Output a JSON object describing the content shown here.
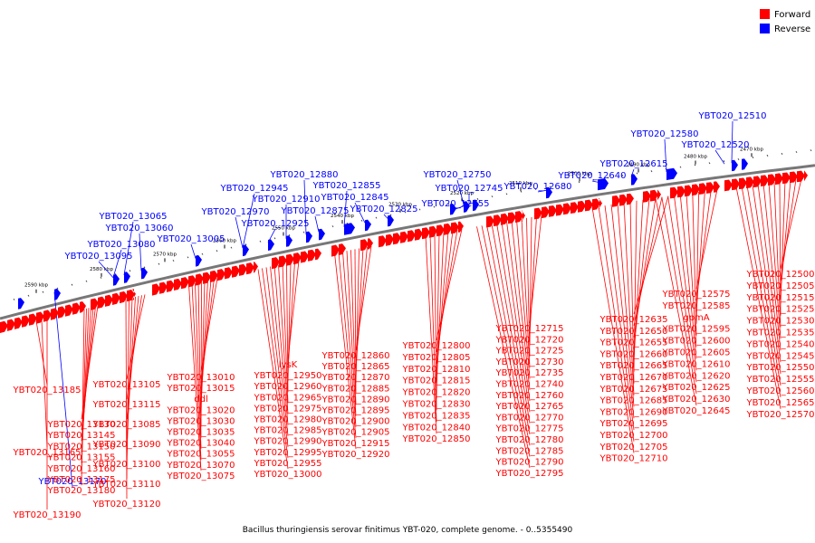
{
  "colors": {
    "forward": "#ff0000",
    "reverse": "#0000ff",
    "lead_forward": "#dd0000",
    "lead_reverse": "#0000cc",
    "backbone": "#777777"
  },
  "legend": [
    {
      "label": "Forward",
      "color": "#ff0000"
    },
    {
      "label": "Reverse",
      "color": "#0000ff"
    }
  ],
  "caption": "Bacillus thuringiensis serovar finitimus YBT-020, complete genome. - 0..5355490",
  "ticks": [
    "2590 kbp",
    "2580 kbp",
    "2570 kbp",
    "2560 kbp",
    "2550 kbp",
    "2540 kbp",
    "2530 kbp",
    "2520 kbp",
    "2510 kbp",
    "2500 kbp",
    "2490 kbp",
    "2480 kbp",
    "2470 kbp"
  ],
  "reverse_genes": [
    "YBT020_12510",
    "YBT020_12520",
    "YBT020_12580",
    "YBT020_12615",
    "YBT020_12640",
    "YBT020_12680",
    "YBT020_12745",
    "YBT020_12750",
    "YBT020_12755",
    "YBT020_12825",
    "YBT020_12845",
    "YBT020_12855",
    "YBT020_12875",
    "YBT020_12880",
    "YBT020_12910",
    "YBT020_12925",
    "YBT020_12945",
    "YBT020_12970",
    "YBT020_13005",
    "YBT020_13060",
    "YBT020_13065",
    "YBT020_13080",
    "YBT020_13095",
    "YBT020_13170"
  ],
  "forward_genes": [
    "YBT020_12500",
    "YBT020_12505",
    "YBT020_12515",
    "YBT020_12525",
    "YBT020_12530",
    "YBT020_12535",
    "YBT020_12540",
    "YBT020_12545",
    "YBT020_12550",
    "YBT020_12555",
    "YBT020_12560",
    "YBT020_12565",
    "YBT020_12570",
    "YBT020_12575",
    "YBT020_12585",
    "gpmA",
    "YBT020_12595",
    "YBT020_12600",
    "YBT020_12605",
    "YBT020_12610",
    "YBT020_12620",
    "YBT020_12625",
    "YBT020_12630",
    "YBT020_12635",
    "YBT020_12645",
    "YBT020_12650",
    "YBT020_12655",
    "YBT020_12660",
    "YBT020_12665",
    "YBT020_12670",
    "YBT020_12675",
    "YBT020_12685",
    "YBT020_12690",
    "YBT020_12695",
    "YBT020_12700",
    "YBT020_12705",
    "YBT020_12710",
    "YBT020_12715",
    "YBT020_12720",
    "YBT020_12725",
    "YBT020_12730",
    "YBT020_12735",
    "YBT020_12740",
    "YBT020_12760",
    "YBT020_12765",
    "YBT020_12770",
    "YBT020_12775",
    "YBT020_12780",
    "YBT020_12785",
    "YBT020_12790",
    "YBT020_12795",
    "YBT020_12800",
    "YBT020_12805",
    "YBT020_12810",
    "YBT020_12815",
    "YBT020_12820",
    "YBT020_12830",
    "YBT020_12835",
    "YBT020_12840",
    "YBT020_12850",
    "YBT020_12860",
    "YBT020_12865",
    "YBT020_12870",
    "YBT020_12885",
    "YBT020_12890",
    "YBT020_12895",
    "YBT020_12900",
    "YBT020_12905",
    "YBT020_12915",
    "YBT020_12920",
    "YBT020_12950",
    "lysK",
    "YBT020_12955",
    "YBT020_12960",
    "YBT020_12965",
    "YBT020_12975",
    "YBT020_12980",
    "YBT020_12985",
    "YBT020_12990",
    "YBT020_12995",
    "YBT020_13000",
    "YBT020_13010",
    "YBT020_13015",
    "YBT020_13020",
    "YBT020_13030",
    "YBT020_13035",
    "YBT020_13040",
    "YBT020_13055",
    "ddl",
    "YBT020_13070",
    "YBT020_13075",
    "YBT020_13085",
    "YBT020_13090",
    "YBT020_13100",
    "YBT020_13105",
    "YBT020_13110",
    "YBT020_13115",
    "YBT020_13120",
    "YBT020_13130",
    "YBT020_13145",
    "YBT020_13150",
    "YBT020_13155",
    "YBT020_13160",
    "YBT020_13165",
    "YBT020_13175",
    "YBT020_13180",
    "YBT020_13185",
    "YBT020_13190"
  ]
}
